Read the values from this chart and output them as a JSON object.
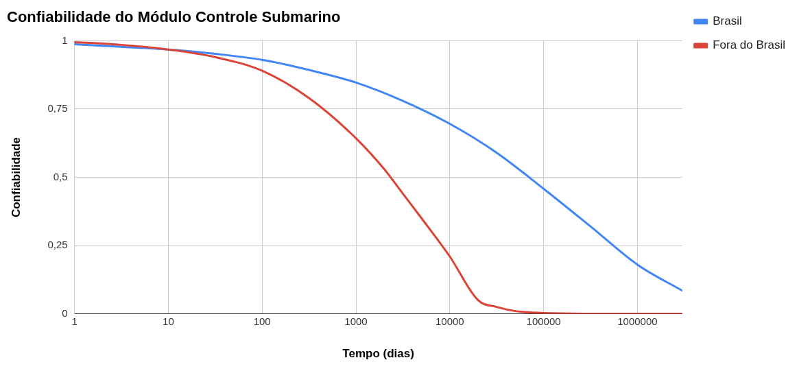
{
  "chart_data": {
    "type": "line",
    "title": "Confiabilidade do Módulo Controle Submarino",
    "xlabel": "Tempo (dias)",
    "ylabel": "Confiabilidade",
    "log": "x",
    "grid": true,
    "legend": "right",
    "marker": "none",
    "line_style": "solid",
    "xlim": [
      1,
      3000000
    ],
    "xticks": [
      1,
      10,
      100,
      1000,
      10000,
      100000,
      1000000
    ],
    "ylim": [
      0,
      1
    ],
    "yticks": [
      0,
      {
        "value": 0.25,
        "label": "0,25"
      },
      {
        "value": 0.5,
        "label": "0,5"
      },
      {
        "value": 0.75,
        "label": "0,75"
      },
      1
    ],
    "series": [
      {
        "name": "Brasil",
        "color": "#4285f4",
        "x": [
          1,
          3.16,
          10,
          31.6,
          100,
          316,
          1000,
          3162,
          10000,
          31623,
          100000,
          316228,
          1000000,
          3000000
        ],
        "values": [
          0.987,
          0.978,
          0.968,
          0.952,
          0.93,
          0.893,
          0.847,
          0.78,
          0.696,
          0.59,
          0.458,
          0.32,
          0.18,
          0.085
        ]
      },
      {
        "name": "Fora do Brasil",
        "color": "#db4437",
        "x": [
          1,
          3.16,
          10,
          31.6,
          100,
          316,
          1000,
          2000,
          3162,
          5000,
          10000,
          20000,
          31623,
          50000,
          100000,
          1000000,
          3000000
        ],
        "values": [
          0.995,
          0.985,
          0.968,
          0.94,
          0.89,
          0.79,
          0.643,
          0.53,
          0.44,
          0.35,
          0.21,
          0.05,
          0.025,
          0.01,
          0.003,
          0,
          0
        ]
      }
    ]
  }
}
